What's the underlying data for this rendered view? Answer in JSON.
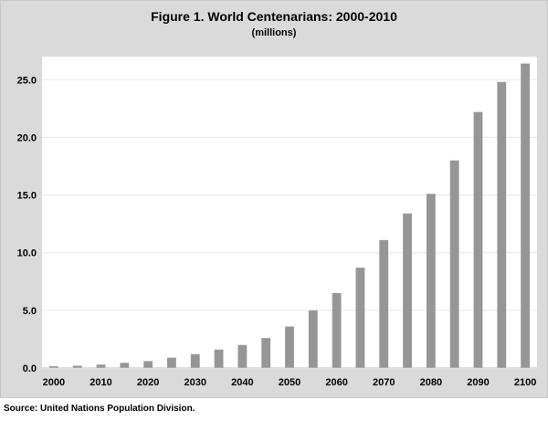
{
  "title": "Figure 1. World Centenarians:  2000-2010",
  "subtitle": "(millions)",
  "source": "Source: United Nations Population Division.",
  "colors": {
    "bar": "#969696",
    "background": "#dadada",
    "plot": "#ffffff",
    "grid": "#e6e6e6"
  },
  "chart_data": {
    "type": "bar",
    "title": "Figure 1. World Centenarians:  2000-2010",
    "subtitle": "(millions)",
    "xlabel": "",
    "ylabel": "",
    "ylim": [
      0,
      27
    ],
    "yticks": [
      "0.0",
      "5.0",
      "10.0",
      "15.0",
      "20.0",
      "25.0"
    ],
    "ytick_values": [
      0,
      5,
      10,
      15,
      20,
      25
    ],
    "xtick_labels": [
      "2000",
      "2010",
      "2020",
      "2030",
      "2040",
      "2050",
      "2060",
      "2070",
      "2080",
      "2090",
      "2100"
    ],
    "categories": [
      2000,
      2005,
      2010,
      2015,
      2020,
      2025,
      2030,
      2035,
      2040,
      2045,
      2050,
      2055,
      2060,
      2065,
      2070,
      2075,
      2080,
      2085,
      2090,
      2095,
      2100
    ],
    "values": [
      0.15,
      0.2,
      0.3,
      0.45,
      0.6,
      0.9,
      1.2,
      1.6,
      2.0,
      2.6,
      3.6,
      5.0,
      6.5,
      8.7,
      11.1,
      13.4,
      15.1,
      18.0,
      22.2,
      24.8,
      26.4
    ],
    "grid": true,
    "legend": "none"
  }
}
